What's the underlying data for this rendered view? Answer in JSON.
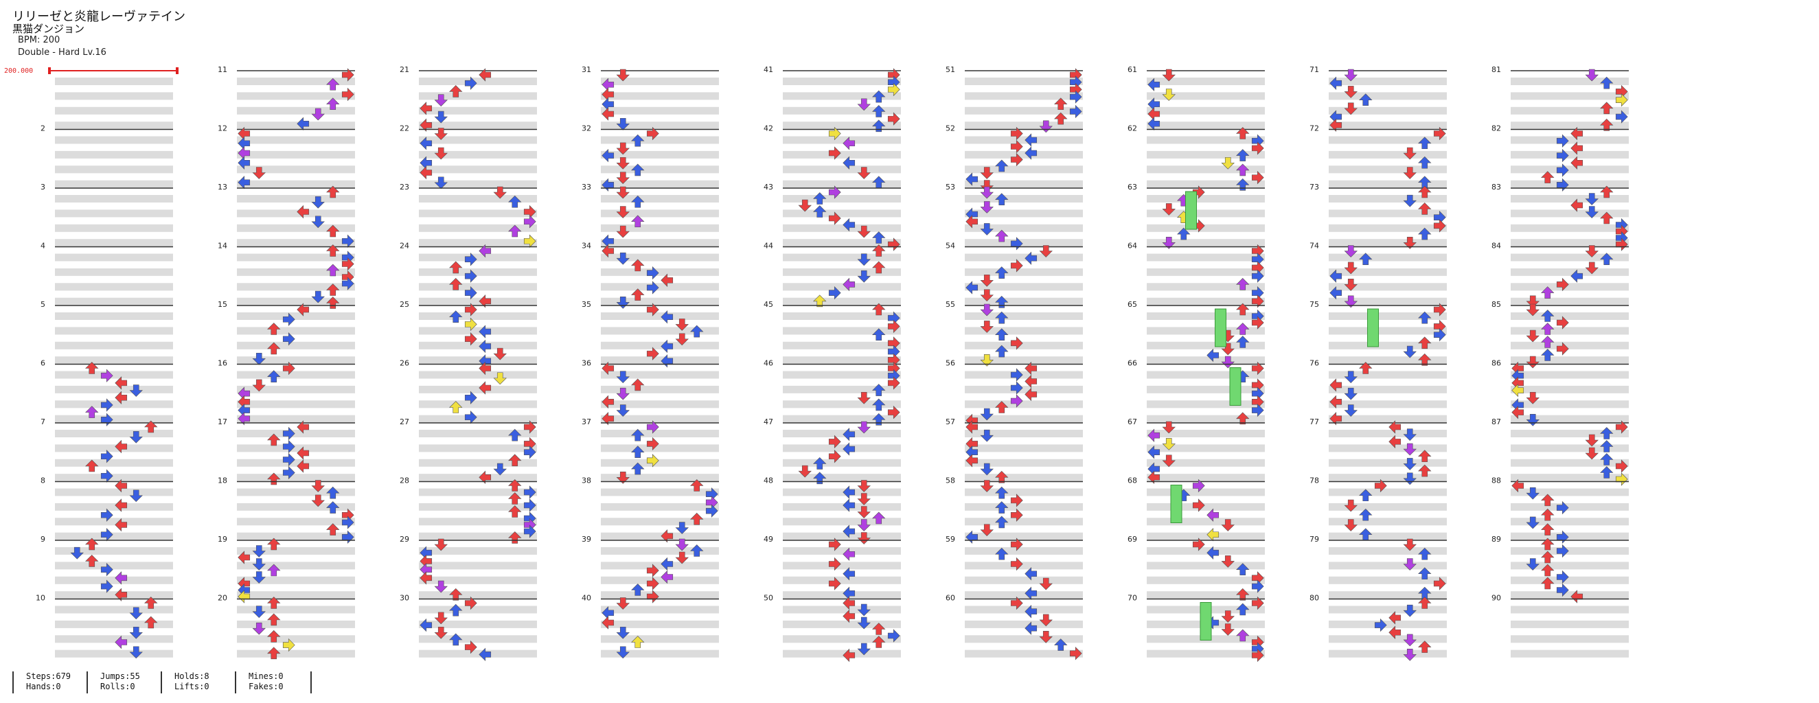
{
  "song": {
    "title": "リリーゼと炎龍レーヴァテイン",
    "artist": "黒猫ダンジョン",
    "bpm_label": "BPM: 200",
    "difficulty": "Double - Hard Lv.16"
  },
  "bpm_marker": "200.000",
  "measure_numbers": [
    "",
    "2",
    "3",
    "4",
    "5",
    "6",
    "7",
    "8",
    "9",
    "10",
    "11",
    "12",
    "13",
    "14",
    "15",
    "16",
    "17",
    "18",
    "19",
    "20",
    "21",
    "22",
    "23",
    "24",
    "25",
    "26",
    "27",
    "28",
    "29",
    "30",
    "31",
    "32",
    "33",
    "34",
    "35",
    "36",
    "37",
    "38",
    "39",
    "40",
    "41",
    "42",
    "43",
    "44",
    "45",
    "46",
    "47",
    "48",
    "49",
    "50",
    "51",
    "52",
    "53",
    "54",
    "55",
    "56",
    "57",
    "58",
    "59",
    "60",
    "61",
    "62",
    "63",
    "64",
    "65",
    "66",
    "67",
    "68",
    "69",
    "70",
    "71",
    "72",
    "73",
    "74",
    "75",
    "76",
    "77",
    "78",
    "79",
    "80",
    "81",
    "82",
    "83",
    "84",
    "85",
    "86",
    "87",
    "88",
    "89",
    "90"
  ],
  "stats": {
    "steps": "Steps:679",
    "hands": "Hands:0",
    "jumps": "Jumps:55",
    "rolls": "Rolls:0",
    "holds": "Holds:8",
    "lifts": "Lifts:0",
    "mines": "Mines:0",
    "fakes": "Fakes:0"
  },
  "colors": {
    "quarter": "#e84040",
    "eighth": "#3a5fe0",
    "sixteenth": "#b040e0",
    "twelfth": "#f0e040",
    "hold": "#70d870",
    "band": "#dcdcdc",
    "line": "#333333",
    "bpm": "#e02020"
  }
}
